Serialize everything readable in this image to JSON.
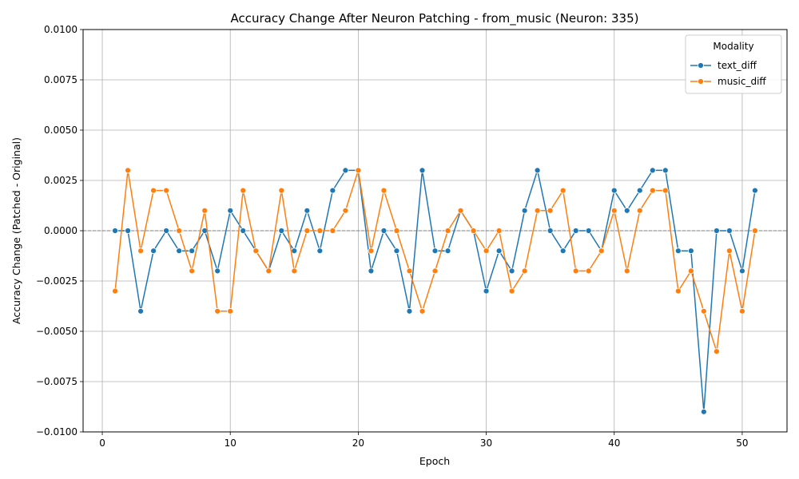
{
  "chart_data": {
    "type": "line",
    "title": "Accuracy Change After Neuron Patching - from_music (Neuron: 335)",
    "xlabel": "Epoch",
    "ylabel": "Accuracy Change (Patched - Original)",
    "xlim": [
      -1.5,
      53.5
    ],
    "ylim": [
      -0.01,
      0.01
    ],
    "x_ticks": [
      0,
      10,
      20,
      30,
      40,
      50
    ],
    "x_tick_labels": [
      "0",
      "10",
      "20",
      "30",
      "40",
      "50"
    ],
    "y_ticks": [
      -0.01,
      -0.0075,
      -0.005,
      -0.0025,
      0,
      0.0025,
      0.005,
      0.0075,
      0.01
    ],
    "y_tick_labels": [
      "−0.0100",
      "−0.0075",
      "−0.0050",
      "−0.0025",
      "0.0000",
      "0.0025",
      "0.0050",
      "0.0075",
      "0.0100"
    ],
    "grid": true,
    "reference_line": 0,
    "legend": {
      "title": "Modality",
      "placement": "top-right"
    },
    "x": [
      1,
      2,
      3,
      4,
      5,
      6,
      7,
      8,
      9,
      10,
      11,
      12,
      13,
      14,
      15,
      16,
      17,
      18,
      19,
      20,
      21,
      22,
      23,
      24,
      25,
      26,
      27,
      28,
      29,
      30,
      31,
      32,
      33,
      34,
      35,
      36,
      37,
      38,
      39,
      40,
      41,
      42,
      43,
      44,
      45,
      46,
      47,
      48,
      49,
      50,
      51
    ],
    "series": [
      {
        "name": "text_diff",
        "color": "#1f77b4",
        "values": [
          0,
          0,
          -0.004,
          -0.001,
          0,
          -0.001,
          -0.001,
          0,
          -0.002,
          0.001,
          0,
          -0.001,
          -0.002,
          0,
          -0.001,
          0.001,
          -0.001,
          0.002,
          0.003,
          0.003,
          -0.002,
          0,
          -0.001,
          -0.004,
          0.003,
          -0.001,
          -0.001,
          0.001,
          0,
          -0.003,
          -0.001,
          -0.002,
          0.001,
          0.003,
          0,
          -0.001,
          0,
          0,
          -0.001,
          0.002,
          0.001,
          0.002,
          0.003,
          0.003,
          -0.001,
          -0.001,
          -0.009,
          0,
          0,
          -0.002,
          0.002
        ]
      },
      {
        "name": "music_diff",
        "color": "#ff7f0e",
        "values": [
          -0.003,
          0.003,
          -0.001,
          0.002,
          0.002,
          0,
          -0.002,
          0.001,
          -0.004,
          -0.004,
          0.002,
          -0.001,
          -0.002,
          0.002,
          -0.002,
          0,
          0,
          0,
          0.001,
          0.003,
          -0.001,
          0.002,
          0,
          -0.002,
          -0.004,
          -0.002,
          0,
          0.001,
          0,
          -0.001,
          0,
          -0.003,
          -0.002,
          0.001,
          0.001,
          0.002,
          -0.002,
          -0.002,
          -0.001,
          0.001,
          -0.002,
          0.001,
          0.002,
          0.002,
          -0.003,
          -0.002,
          -0.004,
          -0.006,
          -0.001,
          -0.004,
          0
        ]
      }
    ]
  }
}
